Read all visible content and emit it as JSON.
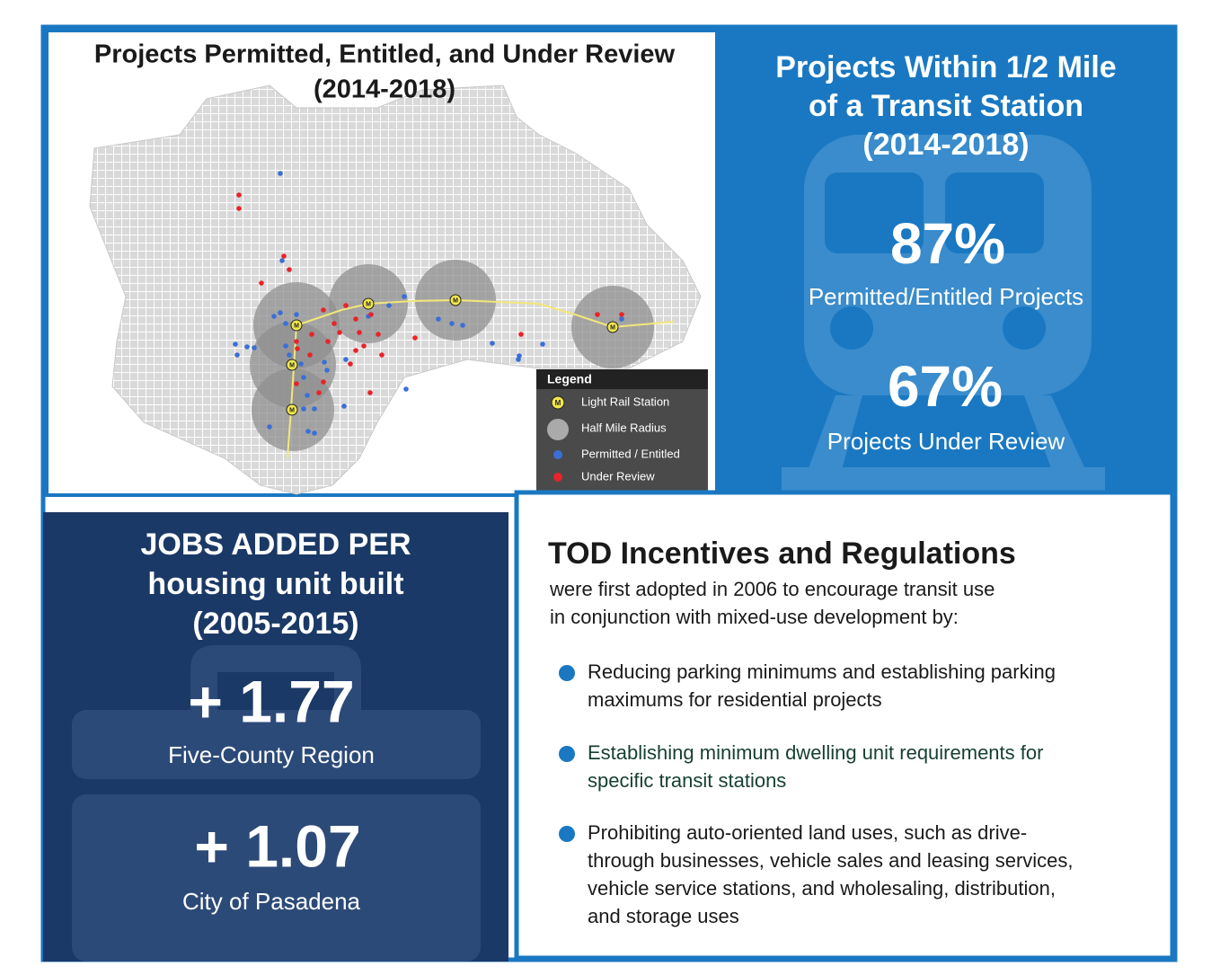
{
  "map_panel": {
    "title": [
      "Projects Permitted, Entitled, and Under Review",
      "(2014-2018)"
    ],
    "station_marker": "M",
    "legend": {
      "title": "Legend",
      "items": [
        "Light Rail Station",
        "Half Mile Radius",
        "Permitted / Entitled",
        "Under Review"
      ]
    }
  },
  "transit_panel": {
    "title": [
      "Projects Within 1/2 Mile",
      "of a Transit Station",
      "(2014-2018)"
    ],
    "stats": [
      {
        "value": "87%",
        "label": "Permitted/Entitled Projects"
      },
      {
        "value": "67%",
        "label": "Projects Under Review"
      }
    ]
  },
  "jobs_panel": {
    "title": [
      "JOBS ADDED PER",
      "housing unit built",
      "(2005-2015)"
    ],
    "stats": [
      {
        "value": "+ 1.77",
        "label": "Five-County Region"
      },
      {
        "value": "+ 1.07",
        "label": "City of Pasadena"
      }
    ]
  },
  "tod_panel": {
    "title": "TOD Incentives and Regulations",
    "intro": [
      "were first adopted in 2006 to encourage transit use",
      "in conjunction with mixed-use development by:"
    ],
    "bullets": [
      [
        "Reducing parking minimums and establishing parking",
        "maximums for residential projects"
      ],
      [
        "Establishing minimum dwelling unit requirements for",
        "specific transit stations"
      ],
      [
        "Prohibiting auto-oriented land uses, such as drive-",
        "through businesses, vehicle sales and leasing services,",
        "vehicle service stations, and wholesaling, distribution,",
        "and storage uses"
      ]
    ]
  }
}
